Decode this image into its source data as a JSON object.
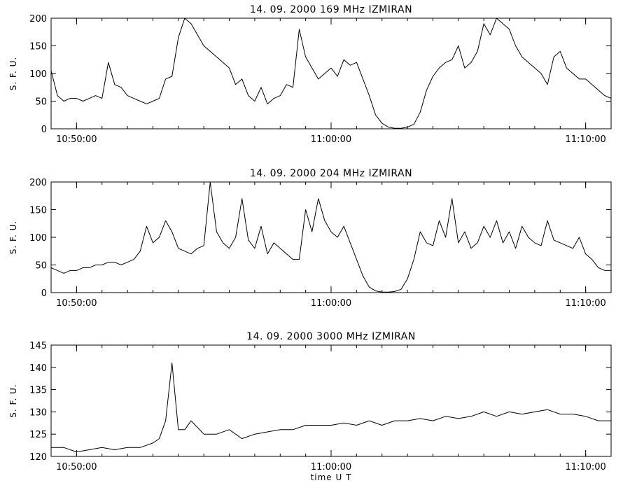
{
  "chart_data": [
    {
      "type": "line",
      "title": "14.  09.  2000    169 MHz    IZMIRAN",
      "ylabel": "S. F. U.",
      "xlabel": "",
      "xlim": [
        "10:49:00",
        "11:11:00"
      ],
      "ylim": [
        0,
        200
      ],
      "yticks": [
        0,
        50,
        100,
        150,
        200
      ],
      "xtick_labels": [
        "10:50:00",
        "11:00:00",
        "11:10:00"
      ],
      "xtick_times": [
        "10:50:00",
        "11:00:00",
        "11:10:00"
      ],
      "series": [
        {
          "x": [
            "10:49:00",
            "10:49:15",
            "10:49:30",
            "10:49:45",
            "10:50:00",
            "10:50:15",
            "10:50:30",
            "10:50:45",
            "10:51:00",
            "10:51:15",
            "10:51:30",
            "10:51:45",
            "10:52:00",
            "10:52:15",
            "10:52:30",
            "10:52:45",
            "10:53:00",
            "10:53:15",
            "10:53:30",
            "10:53:45",
            "10:54:00",
            "10:54:15",
            "10:54:30",
            "10:54:45",
            "10:55:00",
            "10:55:15",
            "10:55:30",
            "10:55:45",
            "10:56:00",
            "10:56:15",
            "10:56:30",
            "10:56:45",
            "10:57:00",
            "10:57:15",
            "10:57:30",
            "10:57:45",
            "10:58:00",
            "10:58:15",
            "10:58:30",
            "10:58:45",
            "10:59:00",
            "10:59:15",
            "10:59:30",
            "10:59:45",
            "11:00:00",
            "11:00:15",
            "11:00:30",
            "11:00:45",
            "11:01:00",
            "11:01:15",
            "11:01:30",
            "11:01:45",
            "11:02:00",
            "11:02:15",
            "11:02:30",
            "11:02:45",
            "11:03:00",
            "11:03:15",
            "11:03:30",
            "11:03:45",
            "11:04:00",
            "11:04:15",
            "11:04:30",
            "11:04:45",
            "11:05:00",
            "11:05:15",
            "11:05:30",
            "11:05:45",
            "11:06:00",
            "11:06:15",
            "11:06:30",
            "11:06:45",
            "11:07:00",
            "11:07:15",
            "11:07:30",
            "11:07:45",
            "11:08:00",
            "11:08:15",
            "11:08:30",
            "11:08:45",
            "11:09:00",
            "11:09:15",
            "11:09:30",
            "11:09:45",
            "11:10:00",
            "11:10:15",
            "11:10:30",
            "11:10:45",
            "11:11:00"
          ],
          "y": [
            105,
            60,
            50,
            55,
            55,
            50,
            55,
            60,
            55,
            120,
            80,
            75,
            60,
            55,
            50,
            45,
            50,
            55,
            90,
            95,
            165,
            200,
            190,
            170,
            150,
            140,
            130,
            120,
            110,
            80,
            90,
            60,
            50,
            75,
            45,
            55,
            60,
            80,
            75,
            180,
            130,
            110,
            90,
            100,
            110,
            95,
            125,
            115,
            120,
            90,
            60,
            25,
            10,
            3,
            1,
            1,
            3,
            8,
            30,
            70,
            95,
            110,
            120,
            125,
            150,
            110,
            120,
            140,
            190,
            170,
            200,
            190,
            180,
            150,
            130,
            120,
            110,
            100,
            80,
            130,
            140,
            110,
            100,
            90,
            90,
            80,
            70,
            60,
            55
          ]
        }
      ]
    },
    {
      "type": "line",
      "title": "14.  09.  2000    204 MHz    IZMIRAN",
      "ylabel": "S. F. U.",
      "xlabel": "",
      "xlim": [
        "10:49:00",
        "11:11:00"
      ],
      "ylim": [
        0,
        200
      ],
      "yticks": [
        0,
        50,
        100,
        150,
        200
      ],
      "xtick_labels": [
        "10:50:00",
        "11:00:00",
        "11:10:00"
      ],
      "xtick_times": [
        "10:50:00",
        "11:00:00",
        "11:10:00"
      ],
      "series": [
        {
          "x": [
            "10:49:00",
            "10:49:15",
            "10:49:30",
            "10:49:45",
            "10:50:00",
            "10:50:15",
            "10:50:30",
            "10:50:45",
            "10:51:00",
            "10:51:15",
            "10:51:30",
            "10:51:45",
            "10:52:00",
            "10:52:15",
            "10:52:30",
            "10:52:45",
            "10:53:00",
            "10:53:15",
            "10:53:30",
            "10:53:45",
            "10:54:00",
            "10:54:15",
            "10:54:30",
            "10:54:45",
            "10:55:00",
            "10:55:15",
            "10:55:30",
            "10:55:45",
            "10:56:00",
            "10:56:15",
            "10:56:30",
            "10:56:45",
            "10:57:00",
            "10:57:15",
            "10:57:30",
            "10:57:45",
            "10:58:00",
            "10:58:15",
            "10:58:30",
            "10:58:45",
            "10:59:00",
            "10:59:15",
            "10:59:30",
            "10:59:45",
            "11:00:00",
            "11:00:15",
            "11:00:30",
            "11:00:45",
            "11:01:00",
            "11:01:15",
            "11:01:30",
            "11:01:45",
            "11:02:00",
            "11:02:15",
            "11:02:30",
            "11:02:45",
            "11:03:00",
            "11:03:15",
            "11:03:30",
            "11:03:45",
            "11:04:00",
            "11:04:15",
            "11:04:30",
            "11:04:45",
            "11:05:00",
            "11:05:15",
            "11:05:30",
            "11:05:45",
            "11:06:00",
            "11:06:15",
            "11:06:30",
            "11:06:45",
            "11:07:00",
            "11:07:15",
            "11:07:30",
            "11:07:45",
            "11:08:00",
            "11:08:15",
            "11:08:30",
            "11:08:45",
            "11:09:00",
            "11:09:15",
            "11:09:30",
            "11:09:45",
            "11:10:00",
            "11:10:15",
            "11:10:30",
            "11:10:45",
            "11:11:00"
          ],
          "y": [
            45,
            40,
            35,
            40,
            40,
            45,
            45,
            50,
            50,
            55,
            55,
            50,
            55,
            60,
            75,
            120,
            90,
            100,
            130,
            110,
            80,
            75,
            70,
            80,
            85,
            200,
            110,
            90,
            80,
            100,
            170,
            95,
            80,
            120,
            70,
            90,
            80,
            70,
            60,
            60,
            150,
            110,
            170,
            130,
            110,
            100,
            120,
            90,
            60,
            30,
            10,
            3,
            1,
            1,
            2,
            6,
            25,
            60,
            110,
            90,
            85,
            130,
            100,
            170,
            90,
            110,
            80,
            90,
            120,
            100,
            130,
            90,
            110,
            80,
            120,
            100,
            90,
            85,
            130,
            95,
            90,
            85,
            80,
            100,
            70,
            60,
            45,
            40,
            40
          ]
        }
      ]
    },
    {
      "type": "line",
      "title": "14.  09.  2000    3000 MHz    IZMIRAN",
      "ylabel": "S. F. U.",
      "xlabel": "time   U T",
      "xlim": [
        "10:49:00",
        "11:11:00"
      ],
      "ylim": [
        120,
        145
      ],
      "yticks": [
        120,
        125,
        130,
        135,
        140,
        145
      ],
      "xtick_labels": [
        "10:50:00",
        "11:00:00",
        "11:10:00"
      ],
      "xtick_times": [
        "10:50:00",
        "11:00:00",
        "11:10:00"
      ],
      "series": [
        {
          "x": [
            "10:49:00",
            "10:49:30",
            "10:50:00",
            "10:50:30",
            "10:51:00",
            "10:51:30",
            "10:52:00",
            "10:52:30",
            "10:53:00",
            "10:53:15",
            "10:53:30",
            "10:53:45",
            "10:54:00",
            "10:54:15",
            "10:54:30",
            "10:55:00",
            "10:55:30",
            "10:56:00",
            "10:56:30",
            "10:57:00",
            "10:57:30",
            "10:58:00",
            "10:58:30",
            "10:59:00",
            "10:59:30",
            "11:00:00",
            "11:00:30",
            "11:01:00",
            "11:01:30",
            "11:02:00",
            "11:02:30",
            "11:03:00",
            "11:03:30",
            "11:04:00",
            "11:04:30",
            "11:05:00",
            "11:05:30",
            "11:06:00",
            "11:06:30",
            "11:07:00",
            "11:07:30",
            "11:08:00",
            "11:08:30",
            "11:09:00",
            "11:09:30",
            "11:10:00",
            "11:10:30",
            "11:11:00"
          ],
          "y": [
            122,
            122,
            121,
            121.5,
            122,
            121.5,
            122,
            122,
            123,
            124,
            128,
            141,
            126,
            126,
            128,
            125,
            125,
            126,
            124,
            125,
            125.5,
            126,
            126,
            127,
            127,
            127,
            127.5,
            127,
            128,
            127,
            128,
            128,
            128.5,
            128,
            129,
            128.5,
            129,
            130,
            129,
            130,
            129.5,
            130,
            130.5,
            129.5,
            129.5,
            129,
            128,
            128
          ]
        }
      ]
    }
  ]
}
